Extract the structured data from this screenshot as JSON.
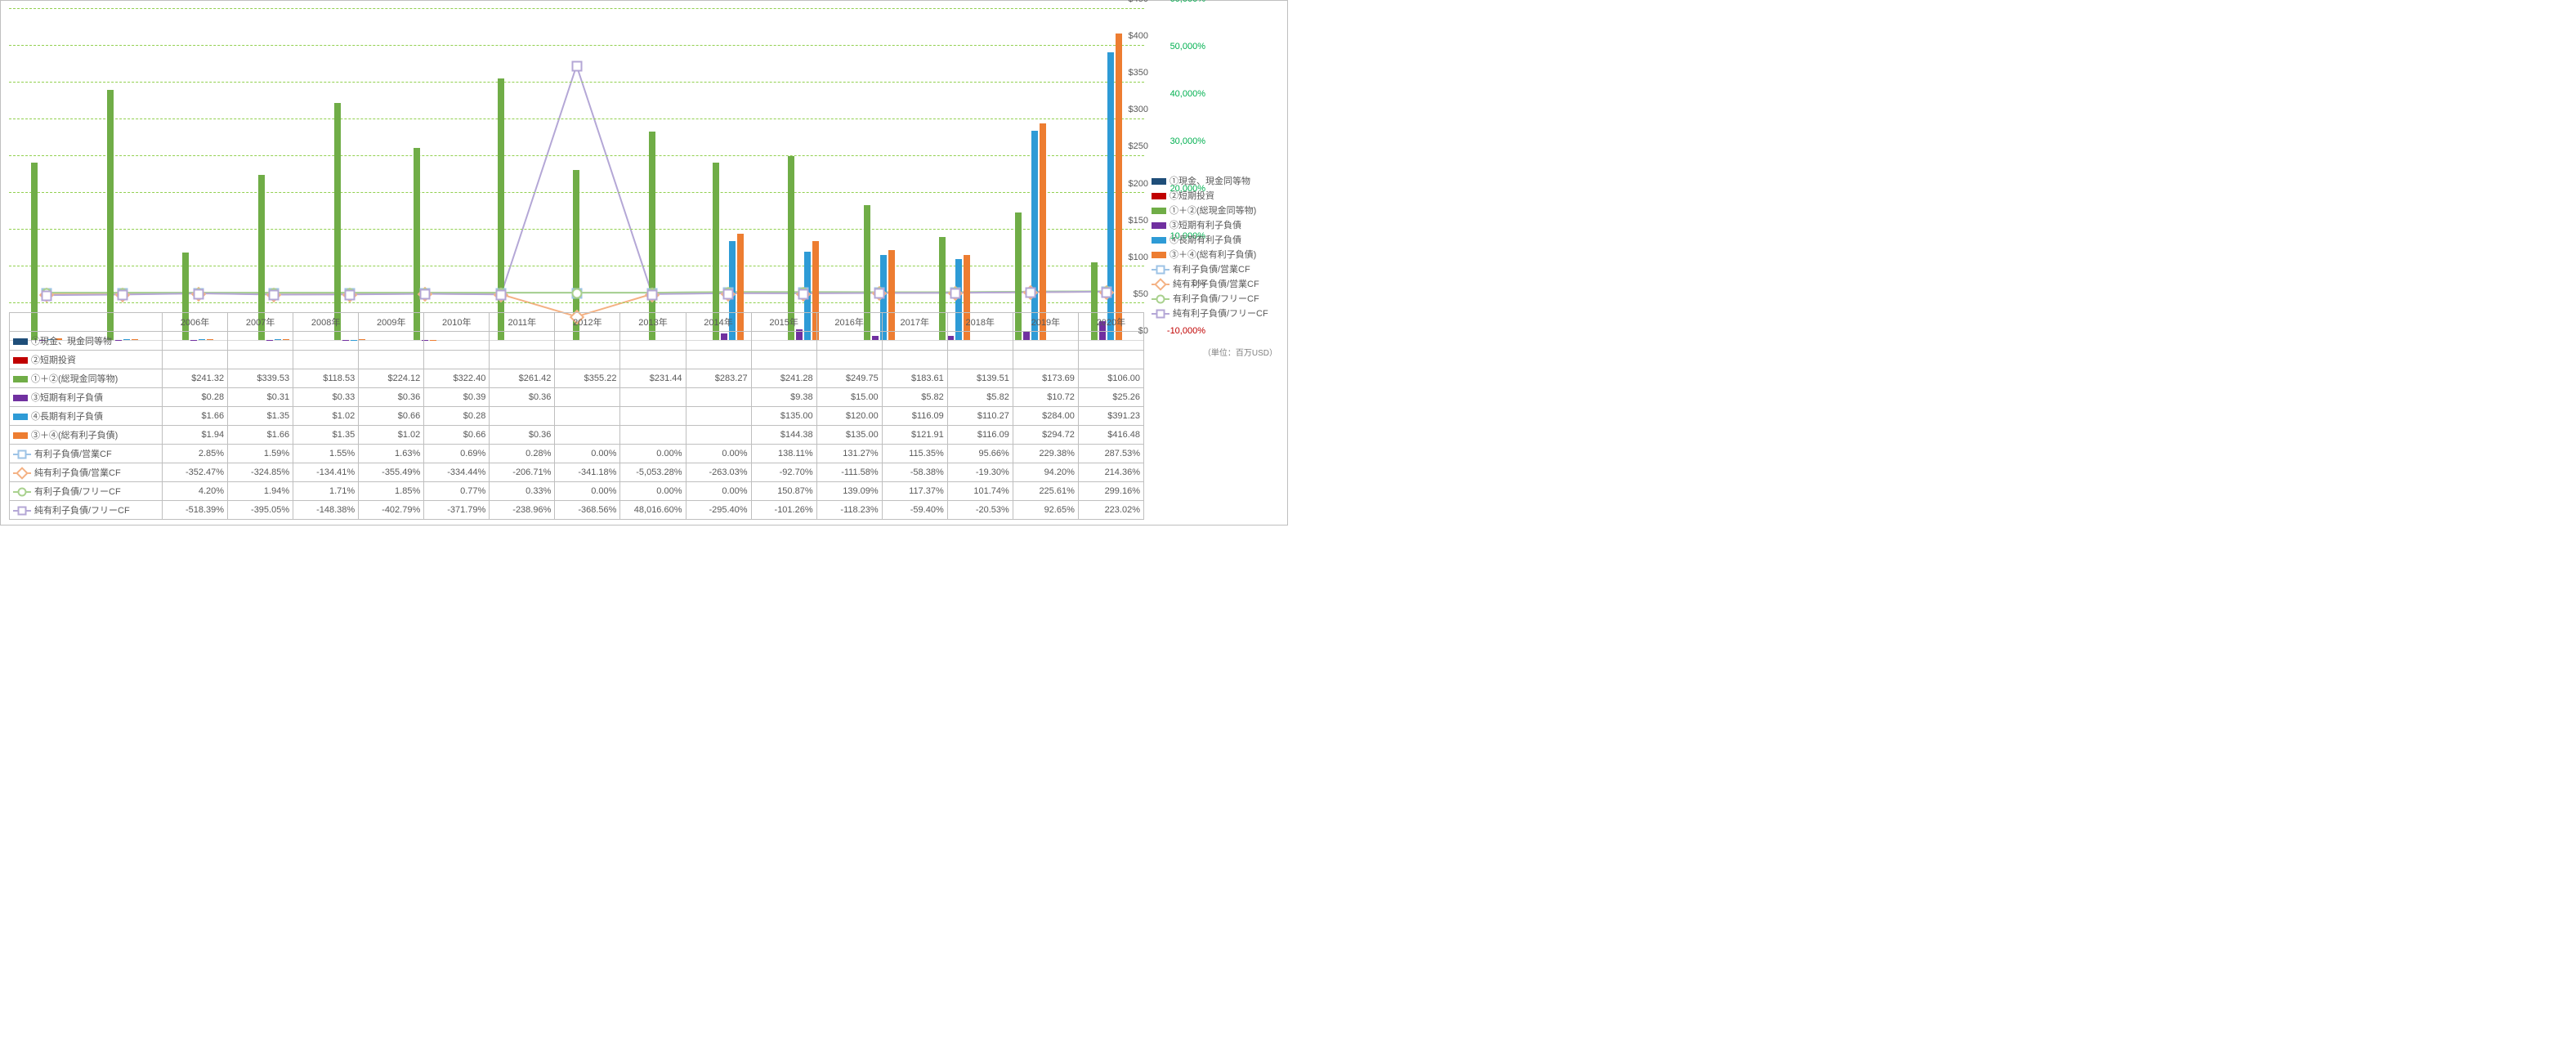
{
  "unit_label": "（単位：百万USD）",
  "years": [
    "2006年",
    "2007年",
    "2008年",
    "2009年",
    "2010年",
    "2011年",
    "2012年",
    "2013年",
    "2014年",
    "2015年",
    "2016年",
    "2017年",
    "2018年",
    "2019年",
    "2020年"
  ],
  "left_axis": {
    "min": 0,
    "max": 450,
    "step": 50,
    "prefix": "$"
  },
  "right_axis": {
    "min": -10000,
    "max": 60000,
    "step": 10000,
    "suffix": "%"
  },
  "grid_color": "#92d050",
  "colors": {
    "s1": "#1f4e79",
    "s2": "#c00000",
    "s3": "#70ad47",
    "s4": "#7030a0",
    "s5": "#2e9bd6",
    "s6": "#ed7d31",
    "s7": "#9dc3e6",
    "s8": "#f4b183",
    "s9": "#a9d18e",
    "s10": "#b4a7d6"
  },
  "series": [
    {
      "key": "s1",
      "name": "①現金、現金同等物",
      "type": "bar",
      "values": [
        null,
        null,
        null,
        null,
        null,
        null,
        null,
        null,
        null,
        null,
        null,
        null,
        null,
        null,
        null
      ],
      "display": [
        "",
        "",
        "",
        "",
        "",
        "",
        "",
        "",
        "",
        "",
        "",
        "",
        "",
        "",
        ""
      ]
    },
    {
      "key": "s2",
      "name": "②短期投資",
      "type": "bar",
      "values": [
        null,
        null,
        null,
        null,
        null,
        null,
        null,
        null,
        null,
        null,
        null,
        null,
        null,
        null,
        null
      ],
      "display": [
        "",
        "",
        "",
        "",
        "",
        "",
        "",
        "",
        "",
        "",
        "",
        "",
        "",
        "",
        ""
      ]
    },
    {
      "key": "s3",
      "name": "①＋②(総現金同等物)",
      "type": "bar",
      "values": [
        241.32,
        339.53,
        118.53,
        224.12,
        322.4,
        261.42,
        355.22,
        231.44,
        283.27,
        241.28,
        249.75,
        183.61,
        139.51,
        173.69,
        106.0
      ],
      "display": [
        "$241.32",
        "$339.53",
        "$118.53",
        "$224.12",
        "$322.40",
        "$261.42",
        "$355.22",
        "$231.44",
        "$283.27",
        "$241.28",
        "$249.75",
        "$183.61",
        "$139.51",
        "$173.69",
        "$106.00"
      ]
    },
    {
      "key": "s4",
      "name": "③短期有利子負債",
      "type": "bar",
      "values": [
        0.28,
        0.31,
        0.33,
        0.36,
        0.39,
        0.36,
        null,
        null,
        null,
        9.38,
        15.0,
        5.82,
        5.82,
        10.72,
        25.26
      ],
      "display": [
        "$0.28",
        "$0.31",
        "$0.33",
        "$0.36",
        "$0.39",
        "$0.36",
        "",
        "",
        "",
        "$9.38",
        "$15.00",
        "$5.82",
        "$5.82",
        "$10.72",
        "$25.26"
      ]
    },
    {
      "key": "s5",
      "name": "④長期有利子負債",
      "type": "bar",
      "values": [
        1.66,
        1.35,
        1.02,
        0.66,
        0.28,
        null,
        null,
        null,
        null,
        135.0,
        120.0,
        116.09,
        110.27,
        284.0,
        391.23
      ],
      "display": [
        "$1.66",
        "$1.35",
        "$1.02",
        "$0.66",
        "$0.28",
        "",
        "",
        "",
        "",
        "$135.00",
        "$120.00",
        "$116.09",
        "$110.27",
        "$284.00",
        "$391.23"
      ]
    },
    {
      "key": "s6",
      "name": "③＋④(総有利子負債)",
      "type": "bar",
      "values": [
        1.94,
        1.66,
        1.35,
        1.02,
        0.66,
        0.36,
        null,
        null,
        null,
        144.38,
        135.0,
        121.91,
        116.09,
        294.72,
        416.48
      ],
      "display": [
        "$1.94",
        "$1.66",
        "$1.35",
        "$1.02",
        "$0.66",
        "$0.36",
        "",
        "",
        "",
        "$144.38",
        "$135.00",
        "$121.91",
        "$116.09",
        "$294.72",
        "$416.48"
      ]
    },
    {
      "key": "s7",
      "name": "有利子負債/営業CF",
      "type": "line",
      "marker": "sq",
      "values": [
        2.85,
        1.59,
        1.55,
        1.63,
        0.69,
        0.28,
        0.0,
        0.0,
        0.0,
        138.11,
        131.27,
        115.35,
        95.66,
        229.38,
        287.53
      ],
      "display": [
        "2.85%",
        "1.59%",
        "1.55%",
        "1.63%",
        "0.69%",
        "0.28%",
        "0.00%",
        "0.00%",
        "0.00%",
        "138.11%",
        "131.27%",
        "115.35%",
        "95.66%",
        "229.38%",
        "287.53%"
      ]
    },
    {
      "key": "s8",
      "name": "純有利子負債/営業CF",
      "type": "line",
      "marker": "di",
      "values": [
        -352.47,
        -324.85,
        -134.41,
        -355.49,
        -334.44,
        -206.71,
        -341.18,
        -5053.28,
        -263.03,
        -92.7,
        -111.58,
        -58.38,
        -19.3,
        94.2,
        214.36
      ],
      "display": [
        "-352.47%",
        "-324.85%",
        "-134.41%",
        "-355.49%",
        "-334.44%",
        "-206.71%",
        "-341.18%",
        "-5,053.28%",
        "-263.03%",
        "-92.70%",
        "-111.58%",
        "-58.38%",
        "-19.30%",
        "94.20%",
        "214.36%"
      ]
    },
    {
      "key": "s9",
      "name": "有利子負債/フリーCF",
      "type": "line",
      "marker": "ci",
      "values": [
        4.2,
        1.94,
        1.71,
        1.85,
        0.77,
        0.33,
        0.0,
        0.0,
        0.0,
        150.87,
        139.09,
        117.37,
        101.74,
        225.61,
        299.16
      ],
      "display": [
        "4.20%",
        "1.94%",
        "1.71%",
        "1.85%",
        "0.77%",
        "0.33%",
        "0.00%",
        "0.00%",
        "0.00%",
        "150.87%",
        "139.09%",
        "117.37%",
        "101.74%",
        "225.61%",
        "299.16%"
      ]
    },
    {
      "key": "s10",
      "name": "純有利子負債/フリーCF",
      "type": "line",
      "marker": "sq",
      "values": [
        -518.39,
        -395.05,
        -148.38,
        -402.79,
        -371.79,
        -238.96,
        -368.56,
        48016.6,
        -295.4,
        -101.26,
        -118.23,
        -59.4,
        -20.53,
        92.65,
        223.02
      ],
      "display": [
        "-518.39%",
        "-395.05%",
        "-148.38%",
        "-402.79%",
        "-371.79%",
        "-238.96%",
        "-368.56%",
        "48,016.60%",
        "-295.40%",
        "-101.26%",
        "-118.23%",
        "-59.40%",
        "-20.53%",
        "92.65%",
        "223.02%"
      ]
    }
  ]
}
